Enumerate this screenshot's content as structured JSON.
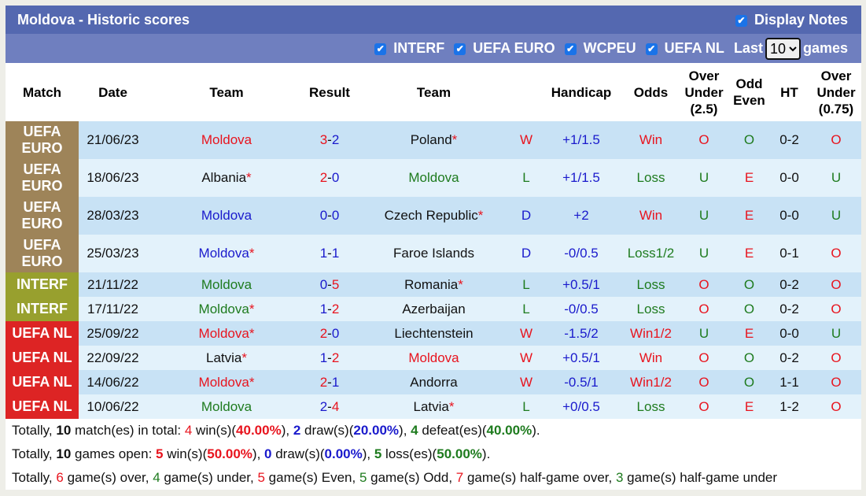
{
  "header": {
    "title": "Moldova - Historic scores",
    "display_notes": "Display Notes"
  },
  "filters": [
    "INTERF",
    "UEFA EURO",
    "WCPEU",
    "UEFA NL"
  ],
  "last_label": "Last",
  "last_value": "10",
  "games_label": "games",
  "columns": [
    "Match",
    "Date",
    "Team",
    "Result",
    "Team",
    "",
    "Handicap",
    "Odds",
    "Over Under (2.5)",
    "Odd Even",
    "HT",
    "Over Under (0.75)"
  ],
  "badge_colors": {
    "UEFA EURO": "#9e8459",
    "INTERF": "#98a02e",
    "UEFA NL": "#dd2424"
  },
  "rows": [
    {
      "match": "UEFA EURO",
      "date": "21/06/23",
      "home": "Moldova",
      "home_star": false,
      "home_color": "red",
      "score": "3-2",
      "away": "Poland",
      "away_star": true,
      "away_color": "blk",
      "res": "W",
      "hcp": "+1/1.5",
      "odds": "Win",
      "ou": "O",
      "oe": "O",
      "ht": "0-2",
      "ou2": "O"
    },
    {
      "match": "UEFA EURO",
      "date": "18/06/23",
      "home": "Albania",
      "home_star": true,
      "home_color": "blk",
      "score": "2-0",
      "away": "Moldova",
      "away_star": false,
      "away_color": "green",
      "res": "L",
      "hcp": "+1/1.5",
      "odds": "Loss",
      "ou": "U",
      "oe": "E",
      "ht": "0-0",
      "ou2": "U"
    },
    {
      "match": "UEFA EURO",
      "date": "28/03/23",
      "home": "Moldova",
      "home_star": false,
      "home_color": "blue",
      "score": "0-0",
      "away": "Czech Republic",
      "away_star": true,
      "away_color": "blk",
      "res": "D",
      "hcp": "+2",
      "odds": "Win",
      "ou": "U",
      "oe": "E",
      "ht": "0-0",
      "ou2": "U"
    },
    {
      "match": "UEFA EURO",
      "date": "25/03/23",
      "home": "Moldova",
      "home_star": true,
      "home_color": "blue",
      "score": "1-1",
      "away": "Faroe Islands",
      "away_star": false,
      "away_color": "blk",
      "res": "D",
      "hcp": "-0/0.5",
      "odds": "Loss1/2",
      "ou": "U",
      "oe": "E",
      "ht": "0-1",
      "ou2": "O"
    },
    {
      "match": "INTERF",
      "date": "21/11/22",
      "home": "Moldova",
      "home_star": false,
      "home_color": "green",
      "score": "0-5",
      "away": "Romania",
      "away_star": true,
      "away_color": "blk",
      "res": "L",
      "hcp": "+0.5/1",
      "odds": "Loss",
      "ou": "O",
      "oe": "O",
      "ht": "0-2",
      "ou2": "O"
    },
    {
      "match": "INTERF",
      "date": "17/11/22",
      "home": "Moldova",
      "home_star": true,
      "home_color": "green",
      "score": "1-2",
      "away": "Azerbaijan",
      "away_star": false,
      "away_color": "blk",
      "res": "L",
      "hcp": "-0/0.5",
      "odds": "Loss",
      "ou": "O",
      "oe": "O",
      "ht": "0-2",
      "ou2": "O"
    },
    {
      "match": "UEFA NL",
      "date": "25/09/22",
      "home": "Moldova",
      "home_star": true,
      "home_color": "red",
      "score": "2-0",
      "away": "Liechtenstein",
      "away_star": false,
      "away_color": "blk",
      "res": "W",
      "hcp": "-1.5/2",
      "odds": "Win1/2",
      "ou": "U",
      "oe": "E",
      "ht": "0-0",
      "ou2": "U"
    },
    {
      "match": "UEFA NL",
      "date": "22/09/22",
      "home": "Latvia",
      "home_star": true,
      "home_color": "blk",
      "score": "1-2",
      "away": "Moldova",
      "away_star": false,
      "away_color": "red",
      "res": "W",
      "hcp": "+0.5/1",
      "odds": "Win",
      "ou": "O",
      "oe": "O",
      "ht": "0-2",
      "ou2": "O"
    },
    {
      "match": "UEFA NL",
      "date": "14/06/22",
      "home": "Moldova",
      "home_star": true,
      "home_color": "red",
      "score": "2-1",
      "away": "Andorra",
      "away_star": false,
      "away_color": "blk",
      "res": "W",
      "hcp": "-0.5/1",
      "odds": "Win1/2",
      "ou": "O",
      "oe": "O",
      "ht": "1-1",
      "ou2": "O"
    },
    {
      "match": "UEFA NL",
      "date": "10/06/22",
      "home": "Moldova",
      "home_star": false,
      "home_color": "green",
      "score": "2-4",
      "away": "Latvia",
      "away_star": true,
      "away_color": "blk",
      "res": "L",
      "hcp": "+0/0.5",
      "odds": "Loss",
      "ou": "O",
      "oe": "E",
      "ht": "1-2",
      "ou2": "O"
    }
  ],
  "summary": [
    [
      {
        "t": "Totally, "
      },
      {
        "t": "10",
        "b": 1
      },
      {
        "t": " match(es) in total: "
      },
      {
        "t": "4",
        "c": "red"
      },
      {
        "t": " win(s)("
      },
      {
        "t": "40.00%",
        "c": "red",
        "b": 1
      },
      {
        "t": "), "
      },
      {
        "t": "2",
        "c": "blue",
        "b": 1
      },
      {
        "t": " draw(s)("
      },
      {
        "t": "20.00%",
        "c": "blue",
        "b": 1
      },
      {
        "t": "), "
      },
      {
        "t": "4",
        "c": "green",
        "b": 1
      },
      {
        "t": " defeat(es)("
      },
      {
        "t": "40.00%",
        "c": "green",
        "b": 1
      },
      {
        "t": ")."
      }
    ],
    [
      {
        "t": "Totally, "
      },
      {
        "t": "10",
        "b": 1
      },
      {
        "t": " games open: "
      },
      {
        "t": "5",
        "c": "red",
        "b": 1
      },
      {
        "t": " win(s)("
      },
      {
        "t": "50.00%",
        "c": "red",
        "b": 1
      },
      {
        "t": "), "
      },
      {
        "t": "0",
        "c": "blue",
        "b": 1
      },
      {
        "t": " draw(s)("
      },
      {
        "t": "0.00%",
        "c": "blue",
        "b": 1
      },
      {
        "t": "), "
      },
      {
        "t": "5",
        "c": "green",
        "b": 1
      },
      {
        "t": " loss(es)("
      },
      {
        "t": "50.00%",
        "c": "green",
        "b": 1
      },
      {
        "t": ")."
      }
    ],
    [
      {
        "t": "Totally, "
      },
      {
        "t": "6",
        "c": "red"
      },
      {
        "t": " game(s) over, "
      },
      {
        "t": "4",
        "c": "green"
      },
      {
        "t": " game(s) under, "
      },
      {
        "t": "5",
        "c": "red"
      },
      {
        "t": " game(s) Even, "
      },
      {
        "t": "5",
        "c": "green"
      },
      {
        "t": " game(s) Odd, "
      },
      {
        "t": "7",
        "c": "red"
      },
      {
        "t": " game(s) half-game over, "
      },
      {
        "t": "3",
        "c": "green"
      },
      {
        "t": " game(s) half-game under"
      }
    ]
  ]
}
